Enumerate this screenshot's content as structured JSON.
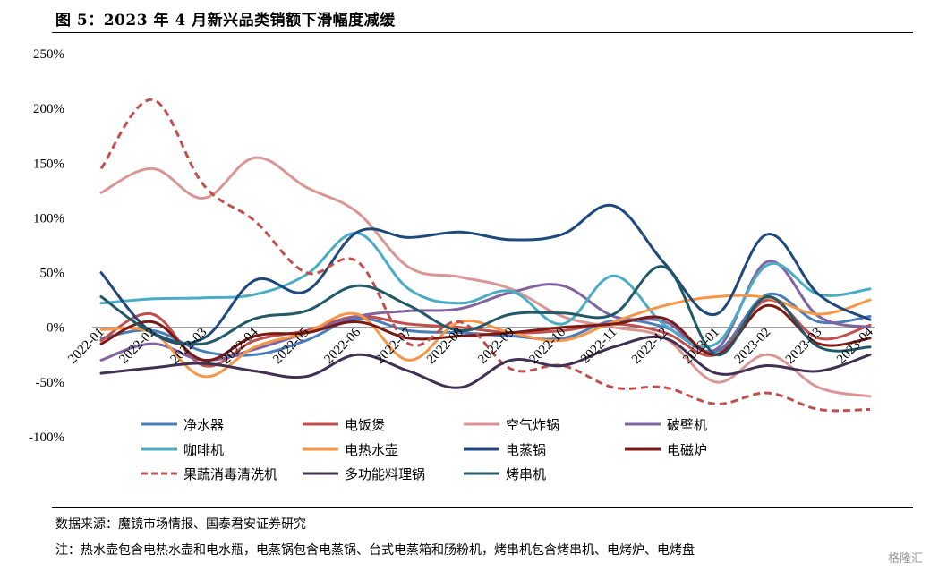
{
  "figure": {
    "title": "图 5：2023 年 4 月新兴品类销额下滑幅度减缓",
    "source": "数据来源：魔镜市场情报、国泰君安证券研究",
    "footnote": "注：热水壶包含电热水壶和电水瓶，电蒸锅包含电蒸锅、台式电蒸箱和肠粉机，烤串机包含烤串机、电烤炉、电烤盘",
    "watermark": "格隆汇"
  },
  "chart_data": {
    "type": "line",
    "x": [
      "2022-01",
      "2022-02",
      "2022-03",
      "2022-04",
      "2022-05",
      "2022-06",
      "2022-07",
      "2022-08",
      "2022-09",
      "2022-10",
      "2022-11",
      "2022-12",
      "2023-01",
      "2023-02",
      "2023-03",
      "2023-04"
    ],
    "x_tick_labels": [
      "2022-01",
      "2022-02",
      "2022-03",
      "2022-04",
      "2022-05",
      "2022-06",
      "2022-07",
      "2022-08",
      "2022-09",
      "2022-10",
      "2022-11",
      "2022-12",
      "2023-01",
      "2023-02",
      "2023-03",
      "2023-04"
    ],
    "ylim": [
      -100,
      250
    ],
    "y_ticks": [
      250,
      200,
      150,
      100,
      50,
      0,
      -50,
      -100
    ],
    "y_tick_labels": [
      "250%",
      "200%",
      "150%",
      "100%",
      "50%",
      "0%",
      "-50%",
      "-100%"
    ],
    "grid": false,
    "legend_position": "bottom",
    "series": [
      {
        "name": "净水器",
        "color": "#4A7EBB",
        "dash": false,
        "values": [
          -10,
          -3,
          -22,
          -25,
          -12,
          8,
          -3,
          -5,
          -8,
          -10,
          6,
          0,
          -22,
          30,
          5,
          10
        ]
      },
      {
        "name": "电饭煲",
        "color": "#C0504D",
        "dash": false,
        "values": [
          -12,
          12,
          -35,
          -12,
          -3,
          10,
          3,
          0,
          -5,
          -3,
          3,
          -5,
          -25,
          25,
          -10,
          2
        ]
      },
      {
        "name": "空气炸锅",
        "color": "#D99694",
        "dash": false,
        "values": [
          123,
          145,
          118,
          155,
          128,
          105,
          55,
          46,
          35,
          10,
          0,
          -10,
          -50,
          -25,
          -55,
          -63
        ]
      },
      {
        "name": "破壁机",
        "color": "#8064A2",
        "dash": false,
        "values": [
          -30,
          -15,
          -30,
          -20,
          -5,
          10,
          15,
          17,
          32,
          38,
          10,
          5,
          -20,
          60,
          10,
          0
        ]
      },
      {
        "name": "咖啡机",
        "color": "#4BACC6",
        "dash": false,
        "values": [
          22,
          26,
          27,
          30,
          48,
          86,
          35,
          22,
          33,
          3,
          47,
          2,
          -15,
          57,
          30,
          35
        ]
      },
      {
        "name": "电热水壶",
        "color": "#F79646",
        "dash": false,
        "values": [
          -2,
          -5,
          -45,
          -18,
          -5,
          12,
          -30,
          5,
          -5,
          -12,
          5,
          20,
          28,
          27,
          12,
          25
        ]
      },
      {
        "name": "电蒸锅",
        "color": "#1F497D",
        "dash": false,
        "values": [
          50,
          -5,
          -10,
          43,
          33,
          87,
          82,
          87,
          80,
          85,
          111,
          58,
          12,
          85,
          30,
          7
        ]
      },
      {
        "name": "电磁炉",
        "color": "#7B1A15",
        "dash": false,
        "values": [
          -15,
          5,
          -30,
          -8,
          -5,
          5,
          -10,
          -8,
          -5,
          0,
          3,
          8,
          -25,
          20,
          -15,
          -10
        ]
      },
      {
        "name": "果蔬消毒清洗机",
        "color": "#C0504D",
        "dash": true,
        "values": [
          145,
          208,
          130,
          97,
          50,
          60,
          -15,
          5,
          -38,
          -35,
          -55,
          -55,
          -70,
          -60,
          -75,
          -75
        ]
      },
      {
        "name": "多功能料理锅",
        "color": "#403152",
        "dash": false,
        "values": [
          -42,
          -37,
          -33,
          -40,
          -45,
          -25,
          -40,
          -55,
          -30,
          -35,
          -18,
          -10,
          -42,
          -35,
          -40,
          -25
        ]
      },
      {
        "name": "烤串机",
        "color": "#215968",
        "dash": false,
        "values": [
          28,
          -5,
          -15,
          8,
          15,
          38,
          20,
          -3,
          12,
          13,
          12,
          55,
          -25,
          28,
          -18,
          -18
        ]
      }
    ]
  }
}
